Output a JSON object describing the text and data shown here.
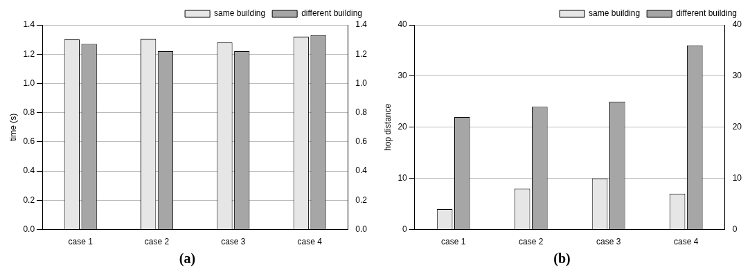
{
  "chart_data": [
    {
      "type": "bar",
      "ylabel": "time (s)",
      "categories": [
        "case 1",
        "case 2",
        "case 3",
        "case 4"
      ],
      "series": [
        {
          "name": "same building",
          "color": "#e6e6e6",
          "values": [
            1.3,
            1.305,
            1.28,
            1.32
          ]
        },
        {
          "name": "different building",
          "color": "#a6a6a6",
          "values": [
            1.27,
            1.22,
            1.22,
            1.33
          ]
        }
      ],
      "ylim": [
        0,
        1.4
      ],
      "yticks": [
        {
          "value": 0,
          "label": "0.0"
        },
        0.2,
        0.4,
        0.6,
        0.8,
        {
          "value": 1,
          "label": "1.0"
        },
        1.2,
        1.4
      ],
      "y2lim": [
        0,
        1.4
      ],
      "y2ticks": [
        {
          "value": 0,
          "label": "0.0"
        },
        0.2,
        0.4,
        0.6,
        0.8,
        {
          "value": 1,
          "label": "1.0"
        },
        1.2,
        1.4
      ],
      "grid": "y",
      "legend": "top right",
      "annotations": [
        "(a)"
      ]
    },
    {
      "type": "bar",
      "ylabel": "hop distance",
      "categories": [
        "case 1",
        "case 2",
        "case 3",
        "case 4"
      ],
      "series": [
        {
          "name": "same building",
          "color": "#e6e6e6",
          "values": [
            4,
            8,
            10,
            7
          ]
        },
        {
          "name": "different building",
          "color": "#a6a6a6",
          "values": [
            22,
            24,
            25,
            36
          ]
        }
      ],
      "ylim": [
        0,
        40
      ],
      "yticks": [
        0,
        10,
        20,
        30,
        40
      ],
      "y2lim": [
        0,
        40
      ],
      "y2ticks": [
        0,
        10,
        20,
        30,
        40
      ],
      "grid": "y",
      "legend": "top right",
      "annotations": [
        "(b)"
      ]
    }
  ]
}
